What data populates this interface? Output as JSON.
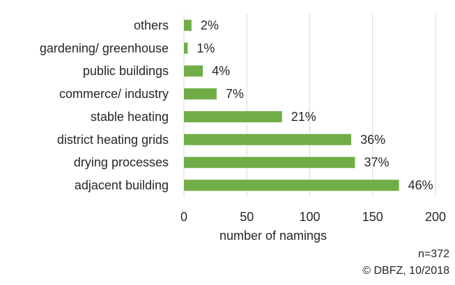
{
  "chart_data": {
    "type": "bar",
    "orientation": "horizontal",
    "categories": [
      "others",
      "gardening/ greenhouse",
      "public buildings",
      "commerce/ industry",
      "stable heating",
      "district heating grids",
      "drying processes",
      "adjacent building"
    ],
    "values": [
      6,
      3,
      15,
      26,
      78,
      133,
      136,
      171
    ],
    "data_labels": [
      "2%",
      "1%",
      "4%",
      "7%",
      "21%",
      "36%",
      "37%",
      "46%"
    ],
    "xlabel": "number of namings",
    "ylabel": "",
    "title": "",
    "xlim": [
      0,
      200
    ],
    "xticks": [
      0,
      50,
      100,
      150,
      200
    ],
    "grid": "vertical",
    "legend": "none",
    "bar_color": "#70AD47"
  },
  "notes": {
    "sample_size": "n=372",
    "copyright": "© DBFZ, 10/2018"
  }
}
